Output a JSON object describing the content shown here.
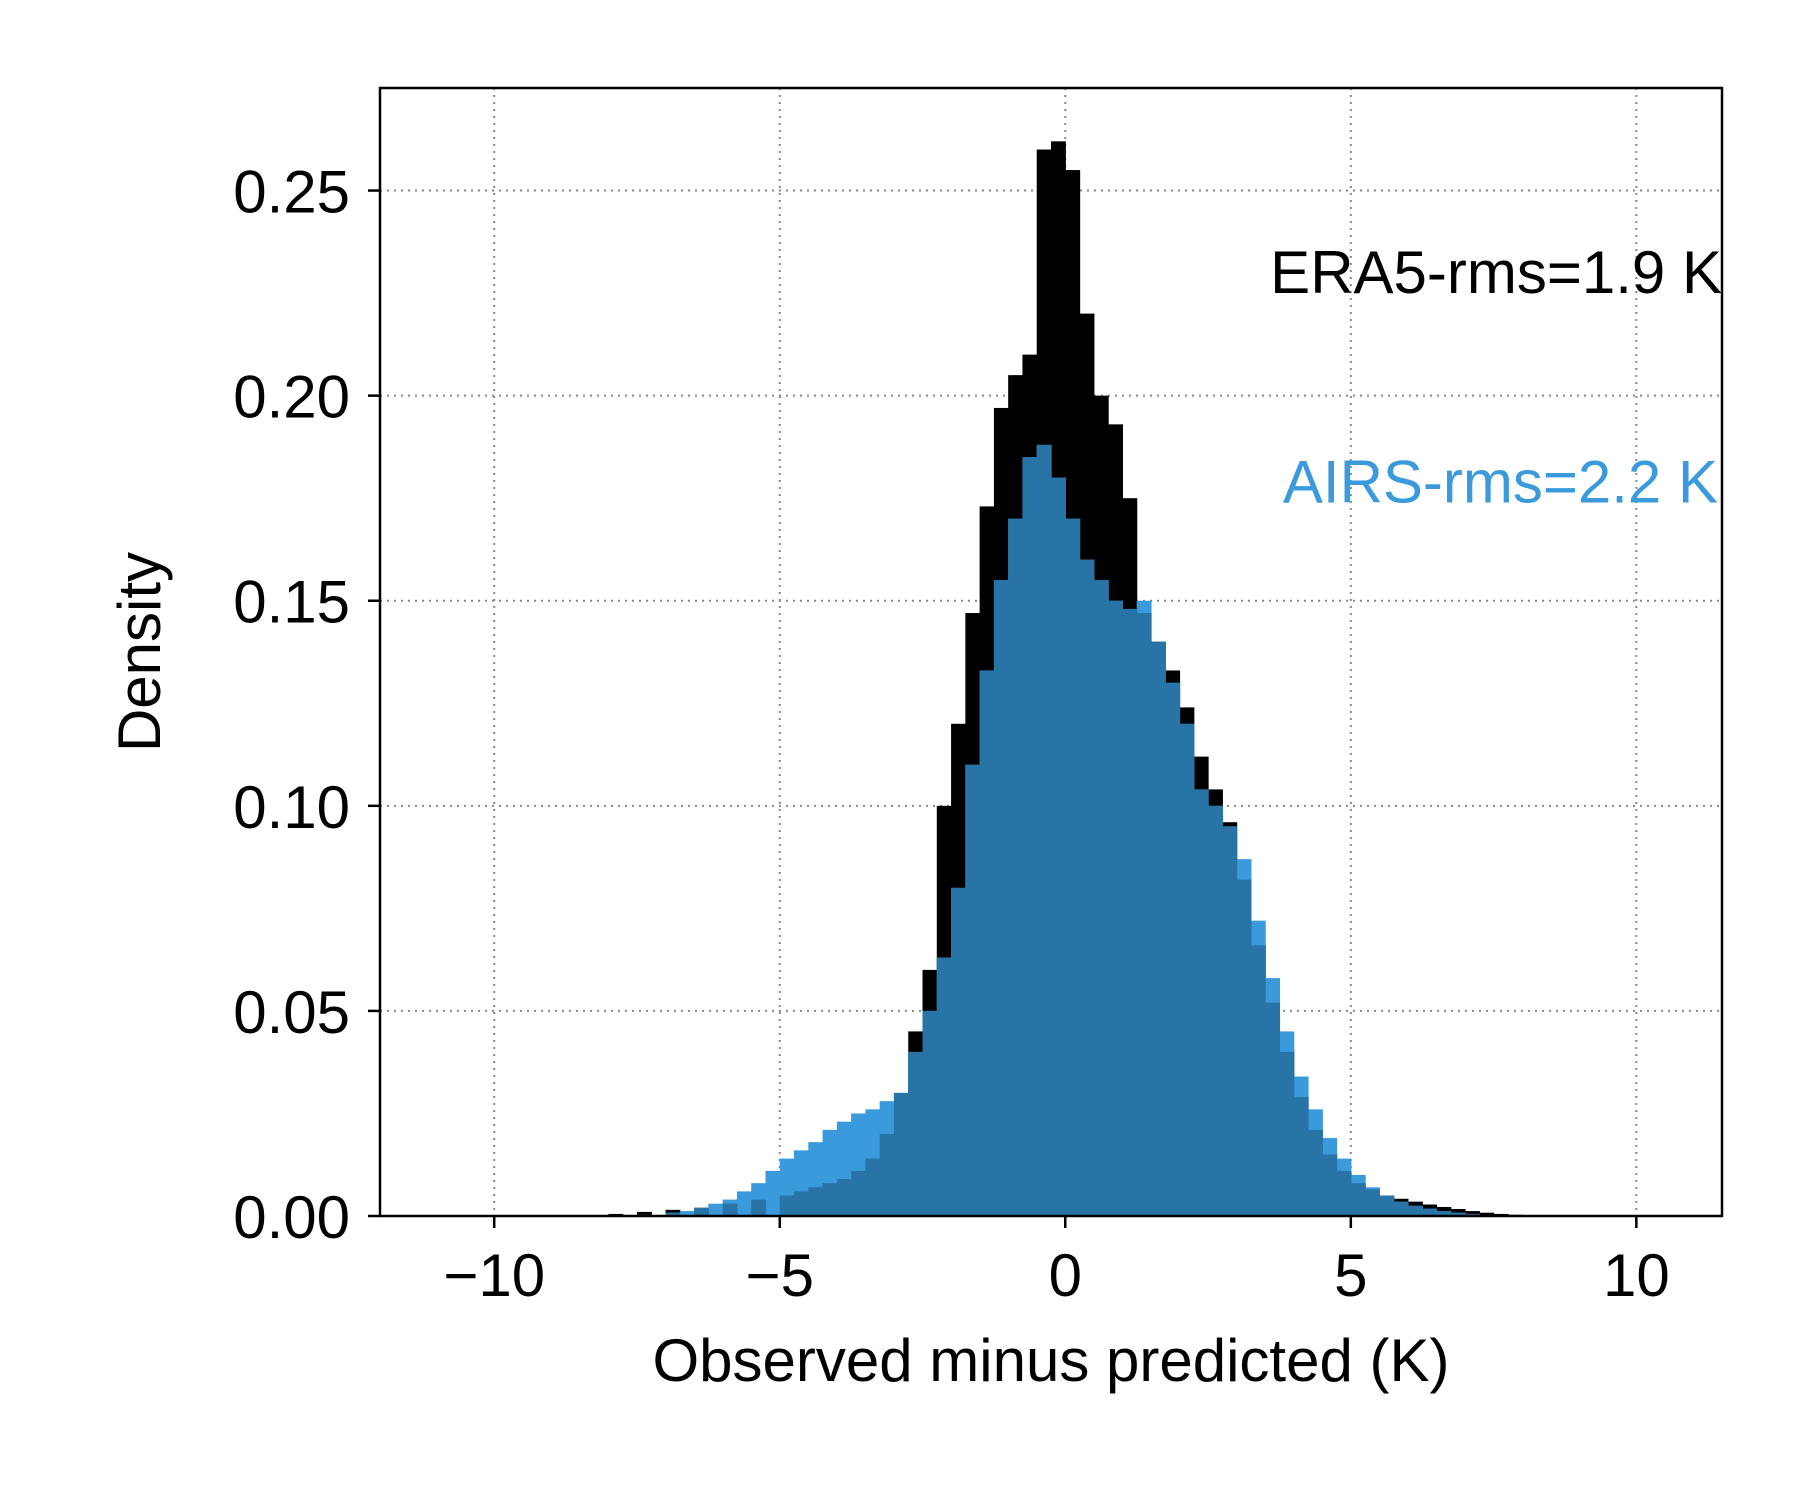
{
  "chart_data": {
    "type": "histogram",
    "xlabel": "Observed minus predicted (K)",
    "ylabel": "Density",
    "xlim": [
      -12,
      11.5
    ],
    "ylim": [
      0,
      0.275
    ],
    "xticks": [
      -10,
      -5,
      0,
      5,
      10
    ],
    "xtick_labels": [
      "−10",
      "−5",
      "0",
      "5",
      "10"
    ],
    "yticks": [
      0,
      0.05,
      0.1,
      0.15,
      0.2,
      0.25
    ],
    "ytick_labels": [
      "0.00",
      "0.05",
      "0.10",
      "0.15",
      "0.20",
      "0.25"
    ],
    "grid": true,
    "bin_width": 0.25,
    "series": [
      {
        "name": "ERA5",
        "color": "#000000",
        "bins": [
          [
            -8,
            0.0005
          ],
          [
            -7.5,
            0.001
          ],
          [
            -7,
            0.0015
          ],
          [
            -6.5,
            0.002
          ],
          [
            -6,
            0.003
          ],
          [
            -5.5,
            0.004
          ],
          [
            -5,
            0.005
          ],
          [
            -4.75,
            0.006
          ],
          [
            -4.5,
            0.007
          ],
          [
            -4.25,
            0.008
          ],
          [
            -4,
            0.009
          ],
          [
            -3.75,
            0.011
          ],
          [
            -3.5,
            0.014
          ],
          [
            -3.25,
            0.02
          ],
          [
            -3,
            0.03
          ],
          [
            -2.75,
            0.045
          ],
          [
            -2.5,
            0.06
          ],
          [
            -2.25,
            0.1
          ],
          [
            -2,
            0.12
          ],
          [
            -1.75,
            0.147
          ],
          [
            -1.5,
            0.173
          ],
          [
            -1.25,
            0.197
          ],
          [
            -1,
            0.205
          ],
          [
            -0.75,
            0.21
          ],
          [
            -0.5,
            0.26
          ],
          [
            -0.25,
            0.262
          ],
          [
            0,
            0.255
          ],
          [
            0.25,
            0.22
          ],
          [
            0.5,
            0.2
          ],
          [
            0.75,
            0.193
          ],
          [
            1,
            0.175
          ],
          [
            1.25,
            0.147
          ],
          [
            1.5,
            0.14
          ],
          [
            1.75,
            0.133
          ],
          [
            2,
            0.124
          ],
          [
            2.25,
            0.112
          ],
          [
            2.5,
            0.104
          ],
          [
            2.75,
            0.096
          ],
          [
            3,
            0.082
          ],
          [
            3.25,
            0.066
          ],
          [
            3.5,
            0.052
          ],
          [
            3.75,
            0.04
          ],
          [
            4,
            0.029
          ],
          [
            4.25,
            0.021
          ],
          [
            4.5,
            0.015
          ],
          [
            4.75,
            0.011
          ],
          [
            5,
            0.008
          ],
          [
            5.25,
            0.0065
          ],
          [
            5.5,
            0.005
          ],
          [
            5.75,
            0.0042
          ],
          [
            6,
            0.0035
          ],
          [
            6.25,
            0.0028
          ],
          [
            6.5,
            0.0022
          ],
          [
            6.75,
            0.0017
          ],
          [
            7,
            0.0012
          ],
          [
            7.25,
            0.0008
          ],
          [
            7.5,
            0.0005
          ],
          [
            7.75,
            0.0003
          ]
        ]
      },
      {
        "name": "AIRS",
        "color": "#3A9ADC",
        "bins": [
          [
            -7.5,
            0.0003
          ],
          [
            -7,
            0.0008
          ],
          [
            -6.75,
            0.0012
          ],
          [
            -6.5,
            0.002
          ],
          [
            -6.25,
            0.003
          ],
          [
            -6,
            0.004
          ],
          [
            -5.75,
            0.006
          ],
          [
            -5.5,
            0.008
          ],
          [
            -5.25,
            0.011
          ],
          [
            -5,
            0.014
          ],
          [
            -4.75,
            0.016
          ],
          [
            -4.5,
            0.018
          ],
          [
            -4.25,
            0.021
          ],
          [
            -4,
            0.023
          ],
          [
            -3.75,
            0.025
          ],
          [
            -3.5,
            0.026
          ],
          [
            -3.25,
            0.028
          ],
          [
            -3,
            0.03
          ],
          [
            -2.75,
            0.04
          ],
          [
            -2.5,
            0.05
          ],
          [
            -2.25,
            0.063
          ],
          [
            -2,
            0.08
          ],
          [
            -1.75,
            0.11
          ],
          [
            -1.5,
            0.133
          ],
          [
            -1.25,
            0.155
          ],
          [
            -1,
            0.17
          ],
          [
            -0.75,
            0.185
          ],
          [
            -0.5,
            0.188
          ],
          [
            -0.25,
            0.18
          ],
          [
            0,
            0.17
          ],
          [
            0.25,
            0.16
          ],
          [
            0.5,
            0.155
          ],
          [
            0.75,
            0.15
          ],
          [
            1,
            0.148
          ],
          [
            1.25,
            0.15
          ],
          [
            1.5,
            0.14
          ],
          [
            1.75,
            0.13
          ],
          [
            2,
            0.12
          ],
          [
            2.25,
            0.104
          ],
          [
            2.5,
            0.1
          ],
          [
            2.75,
            0.095
          ],
          [
            3,
            0.087
          ],
          [
            3.25,
            0.072
          ],
          [
            3.5,
            0.058
          ],
          [
            3.75,
            0.045
          ],
          [
            4,
            0.034
          ],
          [
            4.25,
            0.026
          ],
          [
            4.5,
            0.019
          ],
          [
            4.75,
            0.014
          ],
          [
            5,
            0.01
          ],
          [
            5.25,
            0.007
          ],
          [
            5.5,
            0.005
          ],
          [
            5.75,
            0.0035
          ],
          [
            6,
            0.0025
          ],
          [
            6.25,
            0.0018
          ],
          [
            6.5,
            0.0012
          ],
          [
            6.75,
            0.0008
          ],
          [
            7,
            0.0005
          ],
          [
            7.5,
            0.0002
          ]
        ]
      }
    ],
    "overlap_color": "#2874A6",
    "annotations": [
      {
        "text": "ERA5-rms=1.9 K",
        "color": "#000000"
      },
      {
        "text": "AIRS-rms=2.2 K",
        "color": "#3A9ADC"
      }
    ]
  }
}
